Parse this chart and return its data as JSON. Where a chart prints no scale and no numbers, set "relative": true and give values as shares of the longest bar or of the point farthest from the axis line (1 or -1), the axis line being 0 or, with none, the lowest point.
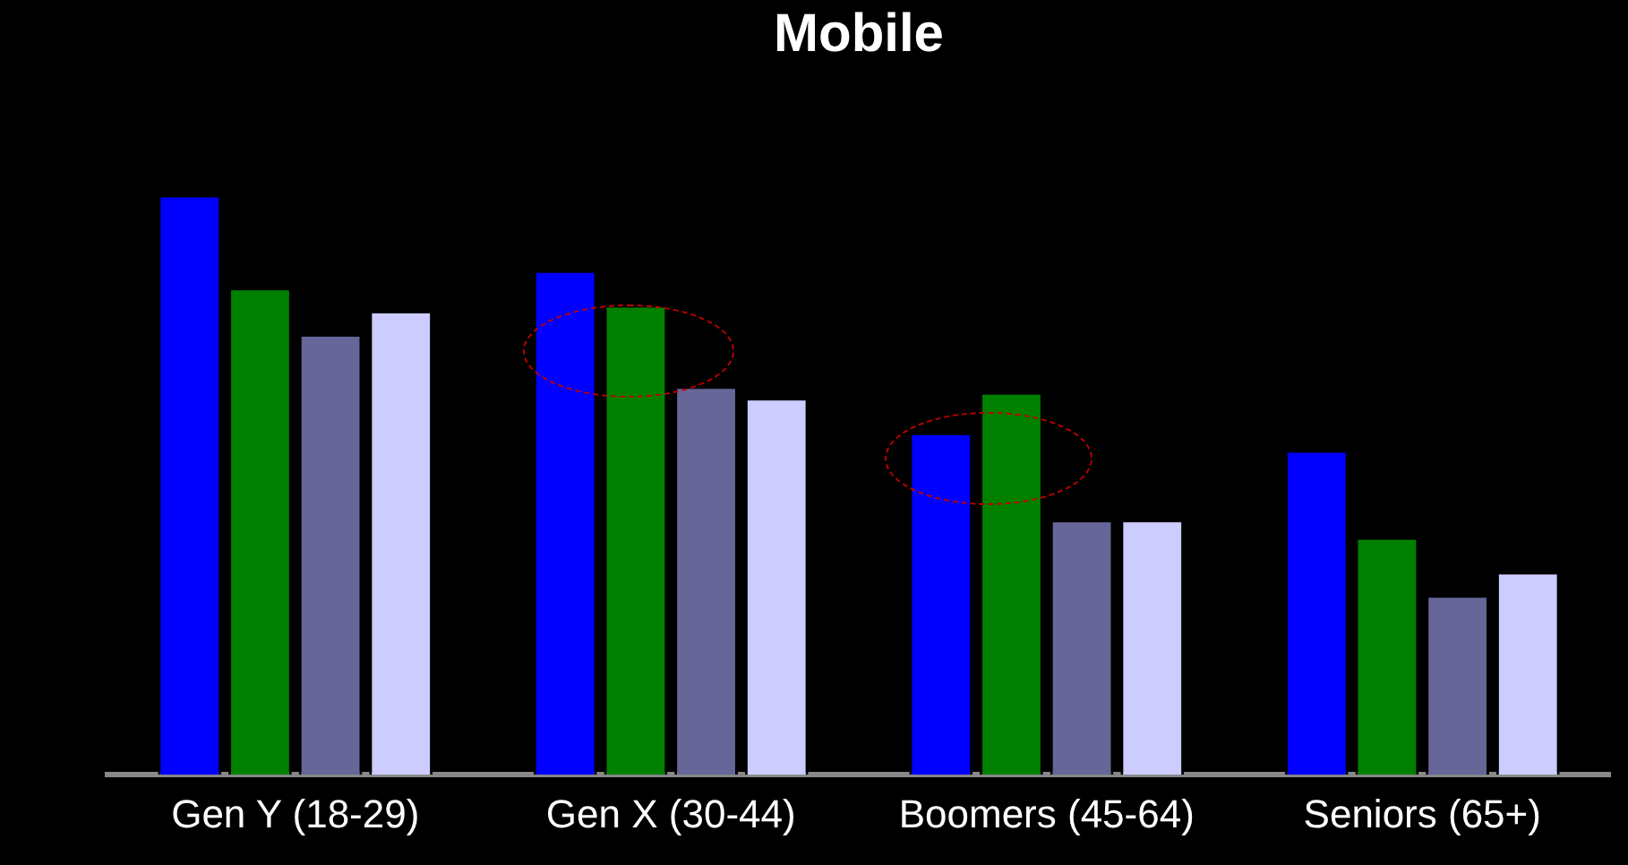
{
  "chart_data": {
    "type": "bar",
    "title": "Mobile",
    "relative": true,
    "categories": [
      "Gen Y (18-29)",
      "Gen X (30-44)",
      "Boomers (45-64)",
      "Seniors (65+)"
    ],
    "series": [
      {
        "color": "#0000ff",
        "values": [
          1,
          0.87,
          0.59,
          0.56
        ]
      },
      {
        "color": "#008000",
        "values": [
          0.84,
          0.81,
          0.66,
          0.41
        ]
      },
      {
        "color": "#666699",
        "values": [
          0.76,
          0.67,
          0.44,
          0.31
        ]
      },
      {
        "color": "#ccccff",
        "values": [
          0.8,
          0.65,
          0.44,
          0.35
        ]
      }
    ]
  }
}
